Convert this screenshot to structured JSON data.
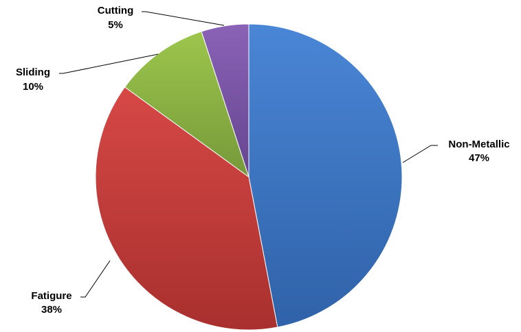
{
  "chart_data": {
    "type": "pie",
    "start_angle_deg": 0,
    "direction": "clockwise",
    "slices": [
      {
        "label": "Non-Metallic",
        "pct_label": "47%",
        "value": 47,
        "color": "#3A75C4"
      },
      {
        "label": "Fatigure",
        "pct_label": "38%",
        "value": 38,
        "color": "#C43C3A"
      },
      {
        "label": "Sliding",
        "pct_label": "10%",
        "value": 10,
        "color": "#8DB43E"
      },
      {
        "label": "Cutting",
        "pct_label": "5%",
        "value": 5,
        "color": "#7A55A3"
      }
    ]
  }
}
